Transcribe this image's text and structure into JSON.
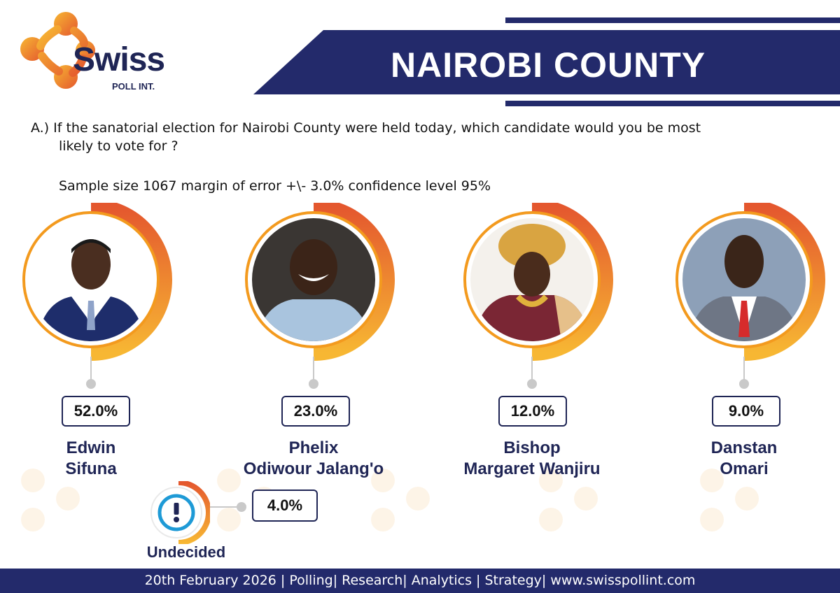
{
  "brand": {
    "name": "Swiss",
    "sub": "POLL INT.",
    "colors": {
      "navy": "#232a6b",
      "orange": "#f39a1e",
      "red": "#e4572e"
    }
  },
  "header": {
    "title": "NAIROBI COUNTY"
  },
  "question": {
    "line1": "A.) If the sanatorial election for Nairobi County were held today, which candidate would you be most",
    "line2": "likely to vote for ?",
    "sample": "Sample size 1067  margin of error +\\- 3.0% confidence level 95%"
  },
  "chart_data": {
    "type": "bar",
    "categories": [
      "Edwin Sifuna",
      "Phelix Odiwour Jalang'o",
      "Bishop Margaret Wanjiru",
      "Danstan Omari",
      "Undecided"
    ],
    "values": [
      52.0,
      23.0,
      12.0,
      9.0,
      4.0
    ],
    "unit": "%"
  },
  "candidates": [
    {
      "pct": "52.0%",
      "name_line1": "Edwin",
      "name_line2": "Sifuna",
      "photo_icon": "candidate-photo-icon"
    },
    {
      "pct": "23.0%",
      "name_line1": "Phelix",
      "name_line2": "Odiwour Jalang'o",
      "photo_icon": "candidate-photo-icon"
    },
    {
      "pct": "12.0%",
      "name_line1": "Bishop",
      "name_line2": "Margaret Wanjiru",
      "photo_icon": "candidate-photo-icon"
    },
    {
      "pct": "9.0%",
      "name_line1": "Danstan",
      "name_line2": "Omari",
      "photo_icon": "candidate-photo-icon"
    }
  ],
  "undecided": {
    "pct": "4.0%",
    "label": "Undecided",
    "icon": "exclamation-icon"
  },
  "footer": {
    "text": "20th February 2026 | Polling| Research| Analytics | Strategy| www.swisspollint.com"
  }
}
